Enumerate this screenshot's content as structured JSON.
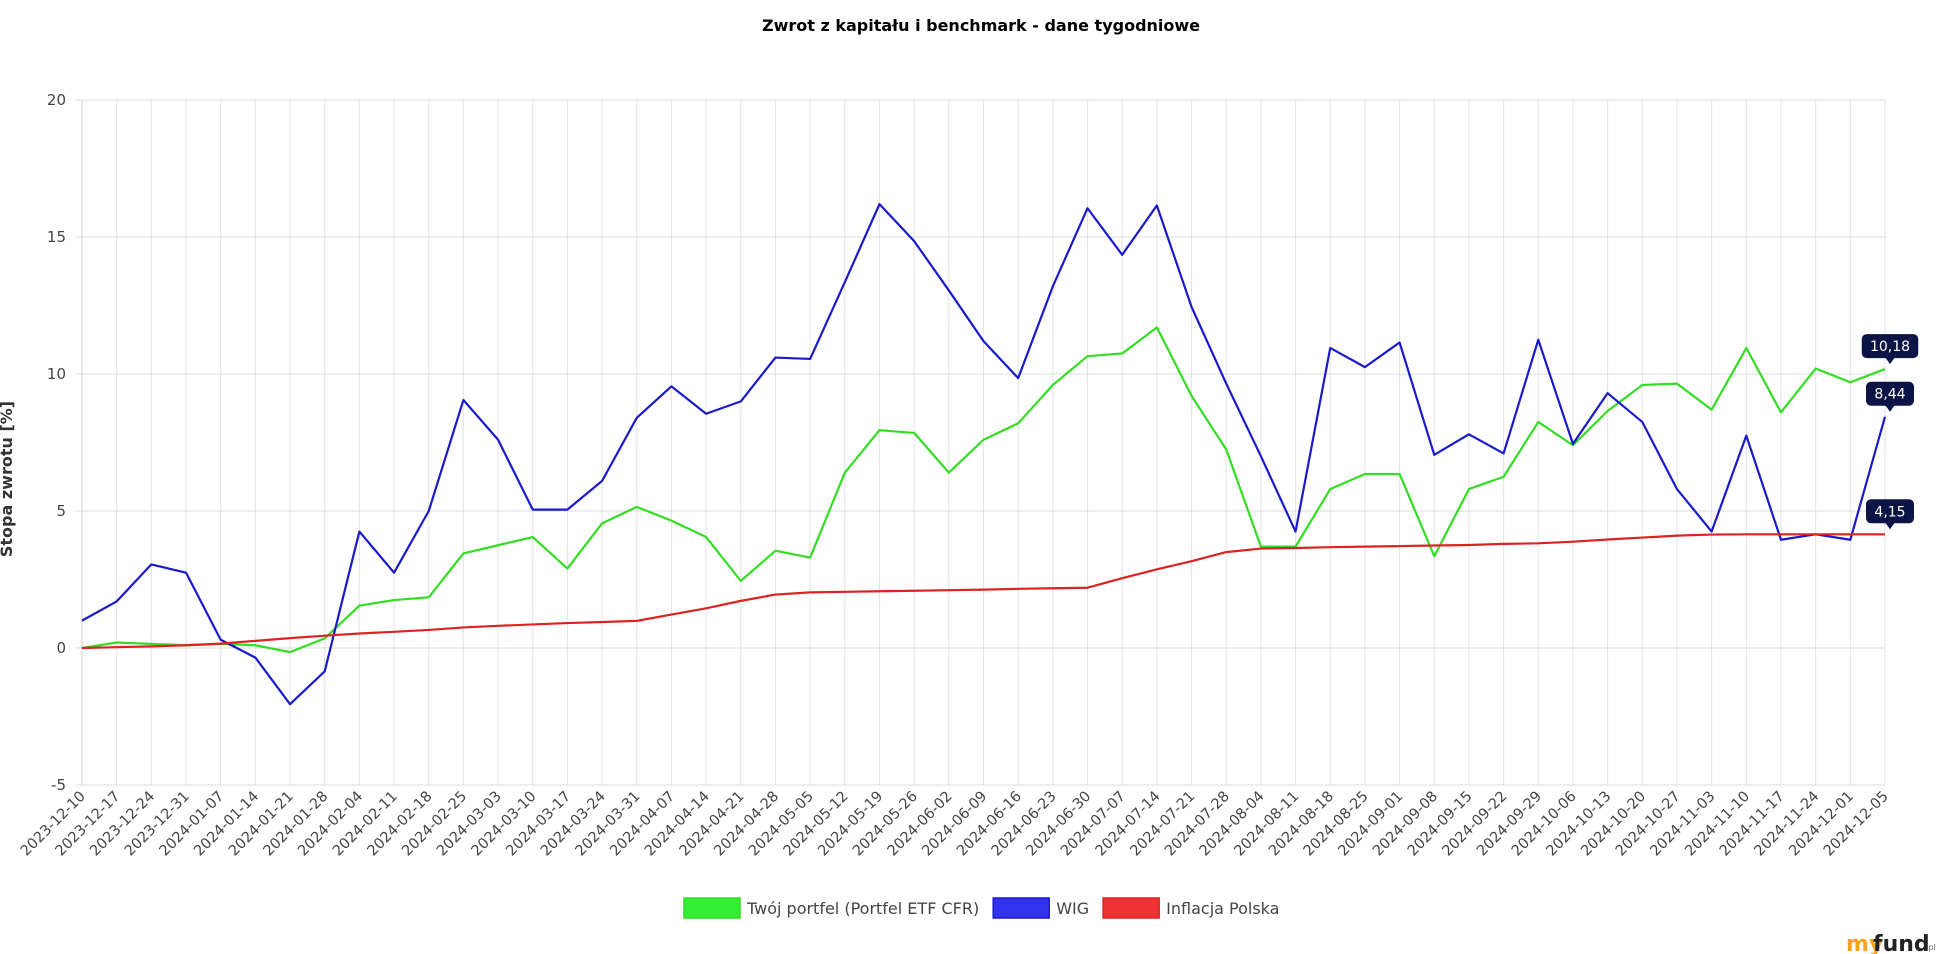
{
  "chart_data": {
    "type": "line",
    "title": "Zwrot z kapitału i benchmark - dane tygodniowe",
    "ylabel": "Stopa zwrotu [%]",
    "xlabel": "",
    "ylim": [
      -5,
      20
    ],
    "yticks": [
      -5,
      0,
      5,
      10,
      15,
      20
    ],
    "grid": true,
    "legend_position": "bottom",
    "categories": [
      "2023-12-10",
      "2023-12-17",
      "2023-12-24",
      "2023-12-31",
      "2024-01-07",
      "2024-01-14",
      "2024-01-21",
      "2024-01-28",
      "2024-02-04",
      "2024-02-11",
      "2024-02-18",
      "2024-02-25",
      "2024-03-03",
      "2024-03-10",
      "2024-03-17",
      "2024-03-24",
      "2024-03-31",
      "2024-04-07",
      "2024-04-14",
      "2024-04-21",
      "2024-04-28",
      "2024-05-05",
      "2024-05-12",
      "2024-05-19",
      "2024-05-26",
      "2024-06-02",
      "2024-06-09",
      "2024-06-16",
      "2024-06-23",
      "2024-06-30",
      "2024-07-07",
      "2024-07-14",
      "2024-07-21",
      "2024-07-28",
      "2024-08-04",
      "2024-08-11",
      "2024-08-18",
      "2024-08-25",
      "2024-09-01",
      "2024-09-08",
      "2024-09-15",
      "2024-09-22",
      "2024-09-29",
      "2024-10-06",
      "2024-10-13",
      "2024-10-20",
      "2024-10-27",
      "2024-11-03",
      "2024-11-10",
      "2024-11-17",
      "2024-11-24",
      "2024-12-01",
      "2024-12-05"
    ],
    "series": [
      {
        "name": "Twój portfel (Portfel ETF CFR)",
        "color": "#33dd22",
        "legend_fill": "#33ee33",
        "end_label": "10,18",
        "values": [
          0.0,
          0.2,
          0.15,
          0.1,
          0.15,
          0.1,
          -0.15,
          0.35,
          1.55,
          1.75,
          1.85,
          3.45,
          3.75,
          4.05,
          2.9,
          4.55,
          5.15,
          4.65,
          4.05,
          2.45,
          3.55,
          3.3,
          6.4,
          7.95,
          7.85,
          6.4,
          7.6,
          8.2,
          9.6,
          10.65,
          10.75,
          11.7,
          9.2,
          7.25,
          3.7,
          3.7,
          5.8,
          6.35,
          6.35,
          3.35,
          5.8,
          6.25,
          8.25,
          7.4,
          8.65,
          9.6,
          9.65,
          8.7,
          10.95,
          8.6,
          10.2,
          9.7,
          10.18
        ]
      },
      {
        "name": "WIG",
        "color": "#1a1acc",
        "legend_fill": "#3333ee",
        "end_label": "8,44",
        "values": [
          1.0,
          1.7,
          3.05,
          2.75,
          0.3,
          -0.35,
          -2.05,
          -0.85,
          4.25,
          2.75,
          5.0,
          9.05,
          7.6,
          5.05,
          5.05,
          6.1,
          8.4,
          9.55,
          8.55,
          9.0,
          10.6,
          10.55,
          13.35,
          16.2,
          14.85,
          13.05,
          11.2,
          9.85,
          13.2,
          16.05,
          14.35,
          16.15,
          12.45,
          9.65,
          7.0,
          4.25,
          10.95,
          10.25,
          11.15,
          7.05,
          7.8,
          7.1,
          11.25,
          7.45,
          9.3,
          8.25,
          5.8,
          4.25,
          7.75,
          3.95,
          4.15,
          3.95,
          8.44
        ]
      },
      {
        "name": "Inflacja  Polska",
        "color": "#dd2222",
        "legend_fill": "#ee3333",
        "end_label": "4,15",
        "values": [
          0.0,
          0.03,
          0.06,
          0.1,
          0.16,
          0.26,
          0.36,
          0.45,
          0.53,
          0.59,
          0.66,
          0.75,
          0.81,
          0.86,
          0.91,
          0.95,
          0.99,
          1.22,
          1.45,
          1.72,
          1.95,
          2.03,
          2.05,
          2.07,
          2.09,
          2.11,
          2.13,
          2.16,
          2.18,
          2.2,
          2.55,
          2.87,
          3.17,
          3.5,
          3.63,
          3.65,
          3.68,
          3.7,
          3.72,
          3.74,
          3.76,
          3.8,
          3.82,
          3.88,
          3.96,
          4.03,
          4.1,
          4.14,
          4.15,
          4.15,
          4.15,
          4.15,
          4.15
        ]
      }
    ]
  },
  "logo": {
    "my": "my",
    "fund": "fund",
    "pl": ".pl"
  }
}
